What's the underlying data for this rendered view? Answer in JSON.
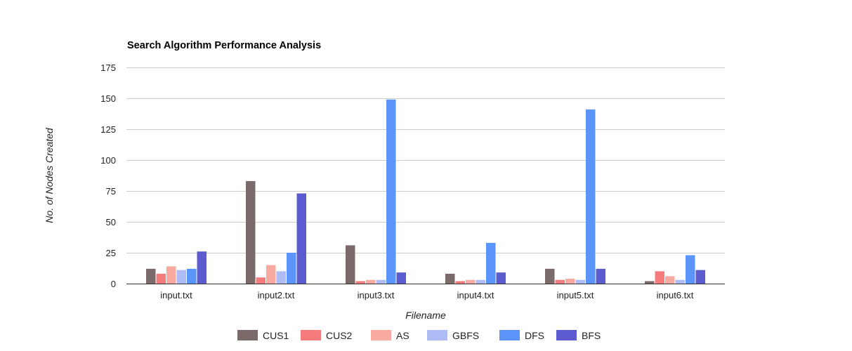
{
  "chart_data": {
    "type": "bar",
    "title": "Search Algorithm Performance Analysis",
    "xlabel": "Filename",
    "ylabel": "No. of Nodes Created",
    "categories": [
      "input.txt",
      "input2.txt",
      "input3.txt",
      "input4.txt",
      "input5.txt",
      "input6.txt"
    ],
    "ylim": [
      0,
      175
    ],
    "yticks": [
      0,
      25,
      50,
      75,
      100,
      125,
      150,
      175
    ],
    "grid": true,
    "legend_position": "bottom",
    "series": [
      {
        "name": "CUS1",
        "color": "#7b6a6a",
        "values": [
          12,
          83,
          31,
          8,
          12,
          2
        ]
      },
      {
        "name": "CUS2",
        "color": "#f47c7c",
        "values": [
          8,
          5,
          2,
          2,
          3,
          10
        ]
      },
      {
        "name": "AS",
        "color": "#f9aaa0",
        "values": [
          14,
          15,
          3,
          3,
          4,
          6
        ]
      },
      {
        "name": "GBFS",
        "color": "#aebbf5",
        "values": [
          11,
          10,
          3,
          3,
          3,
          3
        ]
      },
      {
        "name": "DFS",
        "color": "#5b95f9",
        "values": [
          12,
          25,
          149,
          33,
          141,
          23
        ]
      },
      {
        "name": "BFS",
        "color": "#5c5bcf",
        "values": [
          26,
          73,
          9,
          9,
          12,
          11
        ]
      }
    ]
  }
}
